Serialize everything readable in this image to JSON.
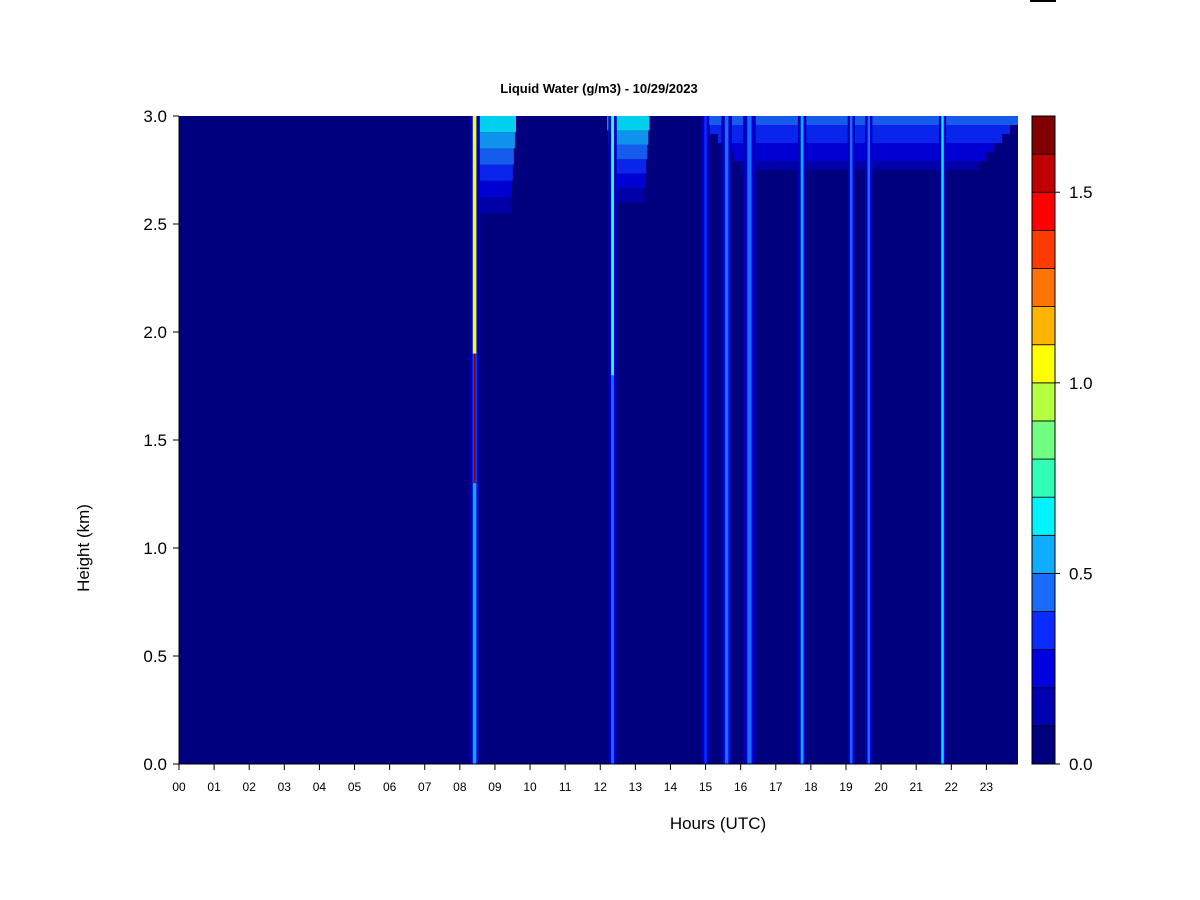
{
  "chart_data": {
    "type": "heatmap",
    "title": "Liquid Water (g/m3) - 10/29/2023",
    "xlabel": "Hours (UTC)",
    "ylabel": "Height (km)",
    "xlim": [
      0,
      23.9
    ],
    "ylim": [
      0,
      3.0
    ],
    "x_ticks": [
      "00",
      "01",
      "02",
      "03",
      "04",
      "05",
      "06",
      "07",
      "08",
      "09",
      "10",
      "11",
      "12",
      "13",
      "14",
      "15",
      "16",
      "17",
      "18",
      "19",
      "20",
      "21",
      "22",
      "23"
    ],
    "y_ticks": [
      "0.0",
      "0.5",
      "1.0",
      "1.5",
      "2.0",
      "2.5",
      "3.0"
    ],
    "background_value": 0.0,
    "colorbar": {
      "range": [
        0,
        1.7
      ],
      "ticks": [
        "0.0",
        "0.5",
        "1.0",
        "1.5"
      ],
      "levels": [
        {
          "from": 0.0,
          "to": 0.1,
          "color": "#00007f"
        },
        {
          "from": 0.1,
          "to": 0.2,
          "color": "#0000b0"
        },
        {
          "from": 0.2,
          "to": 0.3,
          "color": "#0000e0"
        },
        {
          "from": 0.3,
          "to": 0.4,
          "color": "#0a2cff"
        },
        {
          "from": 0.4,
          "to": 0.5,
          "color": "#1a6cff"
        },
        {
          "from": 0.5,
          "to": 0.6,
          "color": "#10acff"
        },
        {
          "from": 0.6,
          "to": 0.7,
          "color": "#00f4ff"
        },
        {
          "from": 0.7,
          "to": 0.8,
          "color": "#30ffb8"
        },
        {
          "from": 0.8,
          "to": 0.9,
          "color": "#70ff80"
        },
        {
          "from": 0.9,
          "to": 1.0,
          "color": "#b4ff40"
        },
        {
          "from": 1.0,
          "to": 1.1,
          "color": "#ffff00"
        },
        {
          "from": 1.1,
          "to": 1.2,
          "color": "#ffb400"
        },
        {
          "from": 1.2,
          "to": 1.3,
          "color": "#ff7400"
        },
        {
          "from": 1.3,
          "to": 1.4,
          "color": "#ff3c00"
        },
        {
          "from": 1.4,
          "to": 1.5,
          "color": "#ff0000"
        },
        {
          "from": 1.5,
          "to": 1.6,
          "color": "#c00000"
        },
        {
          "from": 1.6,
          "to": 1.7,
          "color": "#800000"
        }
      ]
    },
    "features": [
      {
        "hour": 8.42,
        "half_width_h": 0.05,
        "y_from": 0.0,
        "y_to": 3.0,
        "value": 0.5,
        "core": {
          "y_from": 1.3,
          "y_to": 1.9,
          "value": 1.65
        },
        "upper": {
          "y_from": 1.9,
          "y_to": 3.0,
          "value": 1.05
        }
      },
      {
        "hour": 12.35,
        "half_width_h": 0.04,
        "y_from": 0.0,
        "y_to": 3.0,
        "value": 0.4,
        "upper": {
          "y_from": 1.8,
          "y_to": 3.0,
          "value": 0.7
        }
      },
      {
        "hour": 15.0,
        "half_width_h": 0.03,
        "y_from": 0.0,
        "y_to": 3.0,
        "value": 0.35
      },
      {
        "hour": 15.6,
        "half_width_h": 0.05,
        "y_from": 0.0,
        "y_to": 3.0,
        "value": 0.45
      },
      {
        "hour": 16.25,
        "half_width_h": 0.06,
        "y_from": 0.0,
        "y_to": 3.0,
        "value": 0.45
      },
      {
        "hour": 17.75,
        "half_width_h": 0.04,
        "y_from": 0.0,
        "y_to": 3.0,
        "value": 0.55
      },
      {
        "hour": 19.15,
        "half_width_h": 0.03,
        "y_from": 0.0,
        "y_to": 3.0,
        "value": 0.4
      },
      {
        "hour": 19.65,
        "half_width_h": 0.03,
        "y_from": 0.0,
        "y_to": 3.0,
        "value": 0.4
      },
      {
        "hour": 21.75,
        "half_width_h": 0.03,
        "y_from": 0.0,
        "y_to": 3.0,
        "value": 0.6
      }
    ],
    "cloud_top_patches": [
      {
        "x_from": 8.4,
        "x_to": 9.6,
        "y_from": 2.55,
        "y_to": 3.0,
        "value": 0.6
      },
      {
        "x_from": 12.2,
        "x_to": 13.4,
        "y_from": 2.6,
        "y_to": 3.0,
        "value": 0.6
      },
      {
        "x_from": 14.9,
        "x_to": 23.9,
        "y_from": 2.75,
        "y_to": 3.0,
        "value": 0.45
      }
    ]
  }
}
